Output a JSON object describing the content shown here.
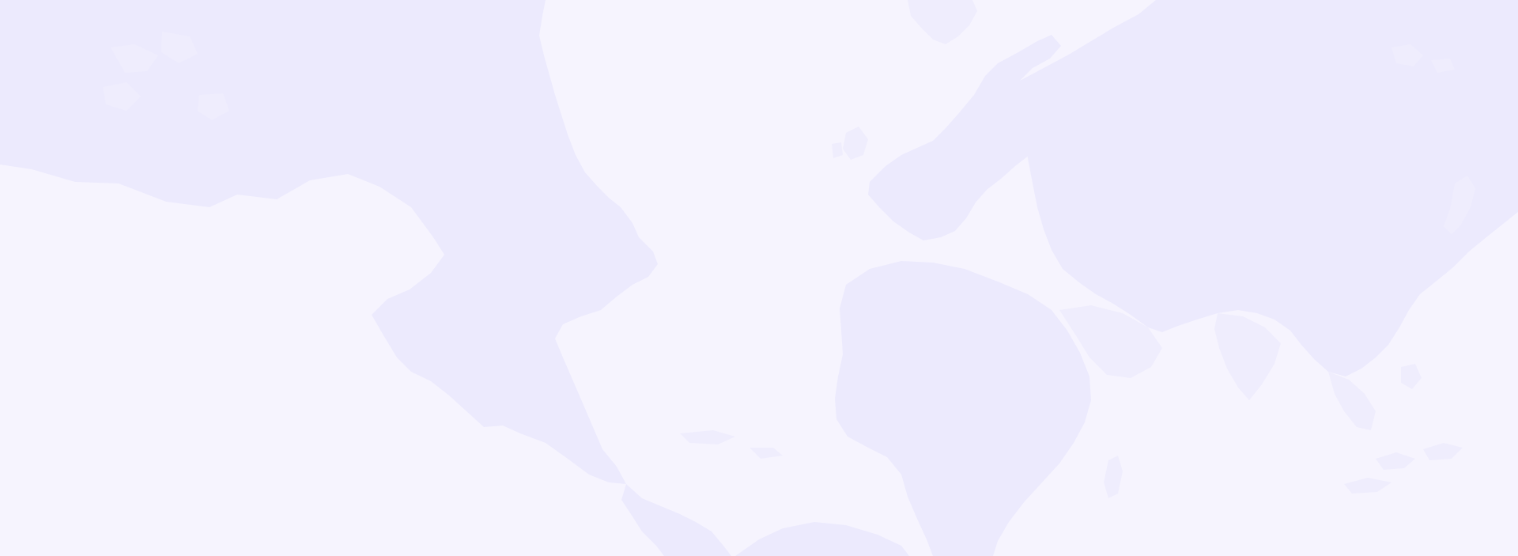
{
  "background": {
    "type": "world-map-backdrop",
    "colors": {
      "ocean": "#f6f4fe",
      "land": "#eceafd"
    }
  }
}
